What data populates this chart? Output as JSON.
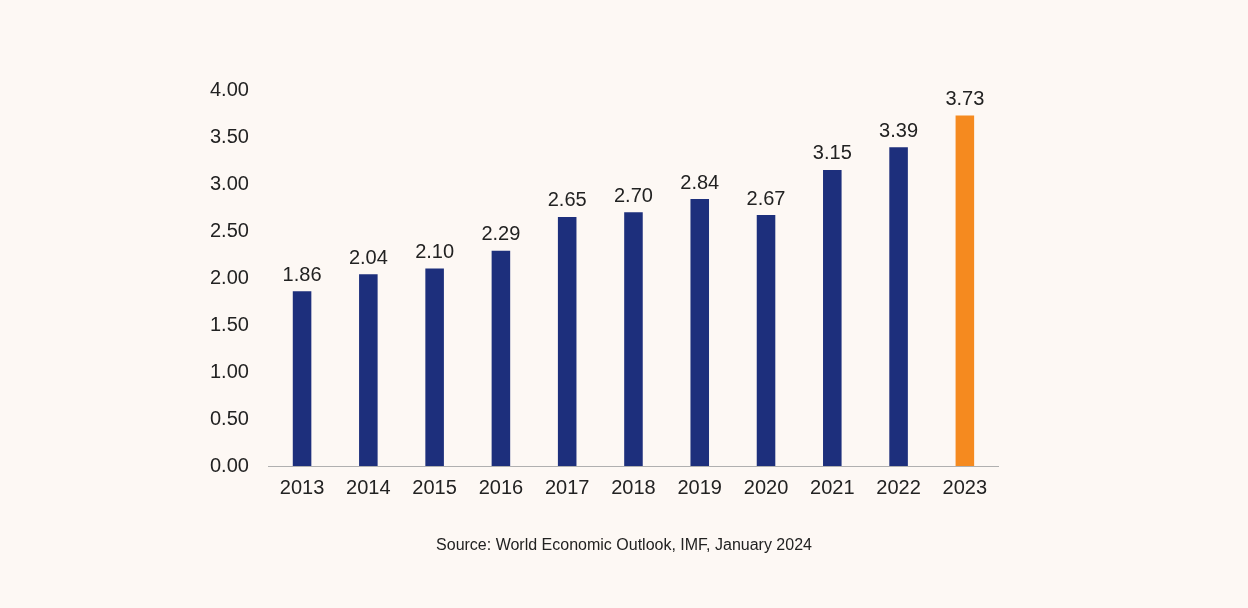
{
  "chart_data": {
    "type": "bar",
    "categories": [
      "2013",
      "2014",
      "2015",
      "2016",
      "2017",
      "2018",
      "2019",
      "2020",
      "2021",
      "2022",
      "2023"
    ],
    "values": [
      1.86,
      2.04,
      2.1,
      2.29,
      2.65,
      2.7,
      2.84,
      2.67,
      3.15,
      3.39,
      3.73
    ],
    "colors": [
      "#1d2f7c",
      "#1d2f7c",
      "#1d2f7c",
      "#1d2f7c",
      "#1d2f7c",
      "#1d2f7c",
      "#1d2f7c",
      "#1d2f7c",
      "#1d2f7c",
      "#1d2f7c",
      "#f58a1f"
    ],
    "value_labels": [
      "1.86",
      "2.04",
      "2.10",
      "2.29",
      "2.65",
      "2.70",
      "2.84",
      "2.67",
      "3.15",
      "3.39",
      "3.73"
    ],
    "ylim": [
      0,
      4
    ],
    "yticks": [
      {
        "value": 0,
        "label": "0.00"
      },
      {
        "value": 0.5,
        "label": "0.50"
      },
      {
        "value": 1,
        "label": "1.00"
      },
      {
        "value": 1.5,
        "label": "1.50"
      },
      {
        "value": 2,
        "label": "2.00"
      },
      {
        "value": 2.5,
        "label": "2.50"
      },
      {
        "value": 3,
        "label": "3.00"
      },
      {
        "value": 3.5,
        "label": "3.50"
      },
      {
        "value": 4,
        "label": "4.00"
      }
    ],
    "grid": false,
    "legend": false,
    "annotations": [
      "Source: World Economic Outlook, IMF, January 2024"
    ]
  }
}
